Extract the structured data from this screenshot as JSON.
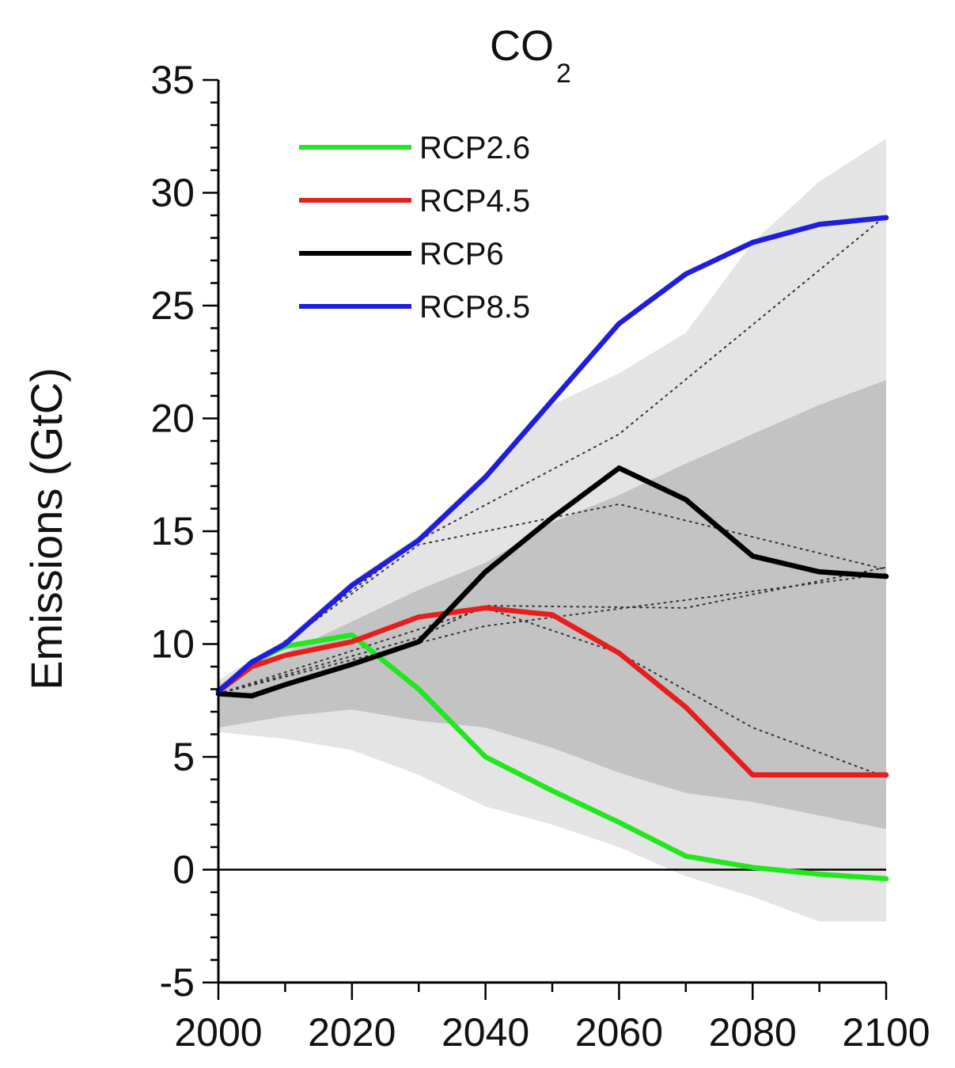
{
  "chart_data": {
    "type": "line",
    "title": "CO",
    "title_subscript": "2",
    "ylabel": "Emissions (GtC)",
    "xlabel": "",
    "xlim": [
      2000,
      2100
    ],
    "ylim": [
      -5,
      35
    ],
    "xticks": [
      2000,
      2020,
      2040,
      2060,
      2080,
      2100
    ],
    "yticks": [
      -5,
      0,
      5,
      10,
      15,
      20,
      25,
      30,
      35
    ],
    "grid": false,
    "legend_position": "top-left",
    "series": [
      {
        "name": "RCP2.6",
        "color": "#22e61e",
        "x": [
          2000,
          2005,
          2010,
          2020,
          2030,
          2040,
          2050,
          2060,
          2070,
          2080,
          2090,
          2100
        ],
        "y": [
          7.9,
          9.2,
          9.9,
          10.4,
          8.0,
          5.0,
          3.5,
          2.1,
          0.6,
          0.1,
          -0.2,
          -0.4
        ]
      },
      {
        "name": "RCP4.5",
        "color": "#e61e1e",
        "x": [
          2000,
          2005,
          2010,
          2020,
          2030,
          2040,
          2050,
          2060,
          2070,
          2080,
          2090,
          2100
        ],
        "y": [
          7.9,
          9.0,
          9.5,
          10.1,
          11.2,
          11.6,
          11.3,
          9.6,
          7.2,
          4.2,
          4.2,
          4.2
        ]
      },
      {
        "name": "RCP6",
        "color": "#000000",
        "x": [
          2000,
          2005,
          2010,
          2020,
          2030,
          2040,
          2050,
          2060,
          2070,
          2080,
          2090,
          2100
        ],
        "y": [
          7.8,
          7.7,
          8.2,
          9.1,
          10.1,
          13.2,
          15.6,
          17.8,
          16.4,
          13.9,
          13.2,
          13.0
        ]
      },
      {
        "name": "RCP8.5",
        "color": "#1e1edc",
        "x": [
          2000,
          2005,
          2010,
          2020,
          2030,
          2040,
          2050,
          2060,
          2070,
          2080,
          2090,
          2100
        ],
        "y": [
          7.9,
          9.2,
          10.0,
          12.6,
          14.6,
          17.4,
          20.8,
          24.2,
          26.4,
          27.8,
          28.6,
          28.9
        ]
      }
    ],
    "dotted_trends": [
      {
        "x": [
          2000,
          2030,
          2060,
          2100
        ],
        "y": [
          7.9,
          14.6,
          19.3,
          29.0
        ]
      },
      {
        "x": [
          2000,
          2030,
          2060,
          2100
        ],
        "y": [
          7.9,
          14.4,
          16.2,
          13.3
        ]
      },
      {
        "x": [
          2000,
          2030,
          2040,
          2070,
          2100
        ],
        "y": [
          7.8,
          10.3,
          11.7,
          11.6,
          13.4
        ]
      },
      {
        "x": [
          2000,
          2040,
          2060,
          2080,
          2100
        ],
        "y": [
          7.8,
          11.6,
          9.6,
          6.3,
          4.1
        ]
      },
      {
        "x": [
          2000,
          2040,
          2100
        ],
        "y": [
          7.8,
          10.8,
          13.1
        ]
      }
    ],
    "bands": [
      {
        "color": "#e4e4e4",
        "x": [
          2000,
          2010,
          2020,
          2030,
          2040,
          2050,
          2060,
          2070,
          2080,
          2090,
          2100
        ],
        "upper": [
          8.4,
          10.2,
          12.8,
          14.8,
          17.6,
          20.6,
          22.0,
          23.8,
          27.8,
          30.5,
          32.4
        ],
        "lower": [
          6.1,
          5.8,
          5.3,
          4.2,
          2.8,
          2.0,
          1.0,
          -0.3,
          -1.2,
          -2.3,
          -2.3
        ]
      },
      {
        "color": "#c3c3c3",
        "x": [
          2000,
          2010,
          2020,
          2030,
          2040,
          2050,
          2060,
          2070,
          2080,
          2090,
          2100
        ],
        "upper": [
          8.2,
          9.6,
          11.0,
          12.4,
          13.6,
          15.4,
          16.6,
          18.0,
          19.3,
          20.6,
          21.7
        ],
        "lower": [
          6.3,
          6.8,
          7.1,
          6.6,
          6.3,
          5.4,
          4.3,
          3.4,
          3.0,
          2.4,
          1.8
        ]
      }
    ]
  }
}
